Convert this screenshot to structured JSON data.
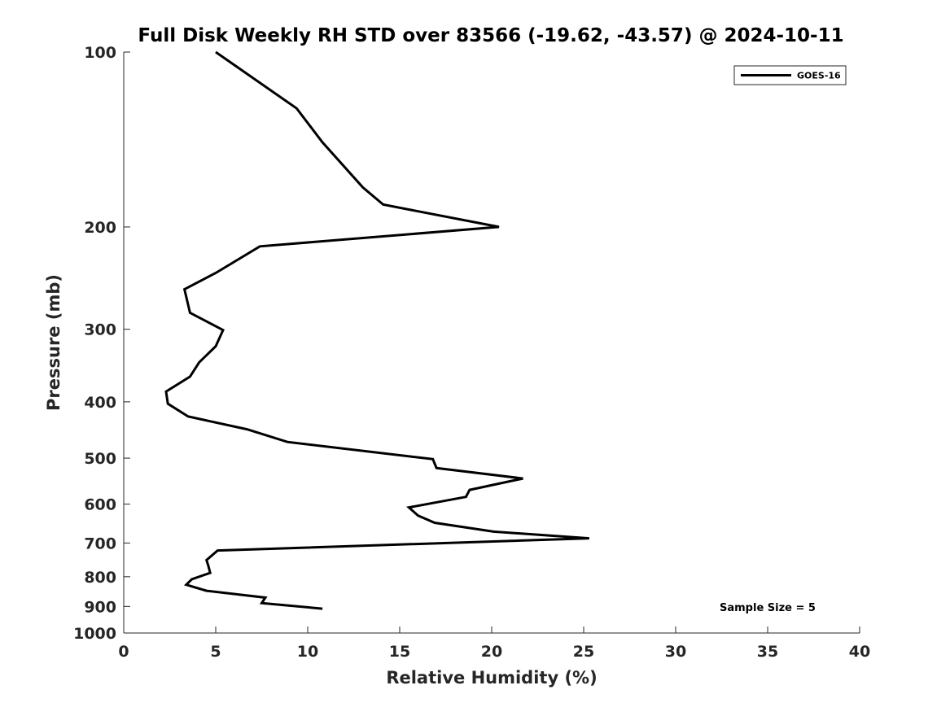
{
  "chart_data": {
    "type": "line",
    "title": "Full Disk Weekly RH STD over 83566 (-19.62, -43.57) @ 2024-10-11",
    "xlabel": "Relative Humidity (%)",
    "ylabel": "Pressure (mb)",
    "xlim": [
      0,
      40
    ],
    "ylim": [
      100,
      1000
    ],
    "yscale": "log",
    "y_inverted": true,
    "x_ticks": [
      0,
      5,
      10,
      15,
      20,
      25,
      30,
      35,
      40
    ],
    "x_tick_labels": [
      "0",
      "5",
      "10",
      "15",
      "20",
      "25",
      "30",
      "35",
      "40"
    ],
    "y_ticks": [
      100,
      200,
      300,
      400,
      500,
      600,
      700,
      800,
      900,
      1000
    ],
    "y_tick_labels": [
      "100",
      "200",
      "300",
      "400",
      "500",
      "600",
      "700",
      "800",
      "900",
      "1000"
    ],
    "grid": false,
    "legend_position": "top-right",
    "series": [
      {
        "name": "GOES-16",
        "color": "#000000",
        "x": [
          5.0,
          9.4,
          10.8,
          13.0,
          14.1,
          20.4,
          7.4,
          5.0,
          3.3,
          3.6,
          5.4,
          5.0,
          4.1,
          3.6,
          2.3,
          2.4,
          3.5,
          6.7,
          8.9,
          16.8,
          17.0,
          21.7,
          18.8,
          18.6,
          15.5,
          16.0,
          16.9,
          20.1,
          25.3,
          5.1,
          4.5,
          4.6,
          4.7,
          3.7,
          3.4,
          4.5,
          7.7,
          7.5,
          10.8
        ],
        "y": [
          100,
          125,
          143,
          171,
          183,
          200,
          216,
          240,
          256,
          281,
          301,
          321,
          342,
          362,
          384,
          403,
          424,
          446,
          469,
          502,
          520,
          542,
          567,
          583,
          608,
          628,
          646,
          669,
          687,
          721,
          749,
          767,
          788,
          808,
          826,
          846,
          869,
          888,
          908
        ]
      }
    ],
    "annotations": [
      {
        "text": "Sample Size = 5",
        "position": "bottom-right"
      }
    ]
  }
}
